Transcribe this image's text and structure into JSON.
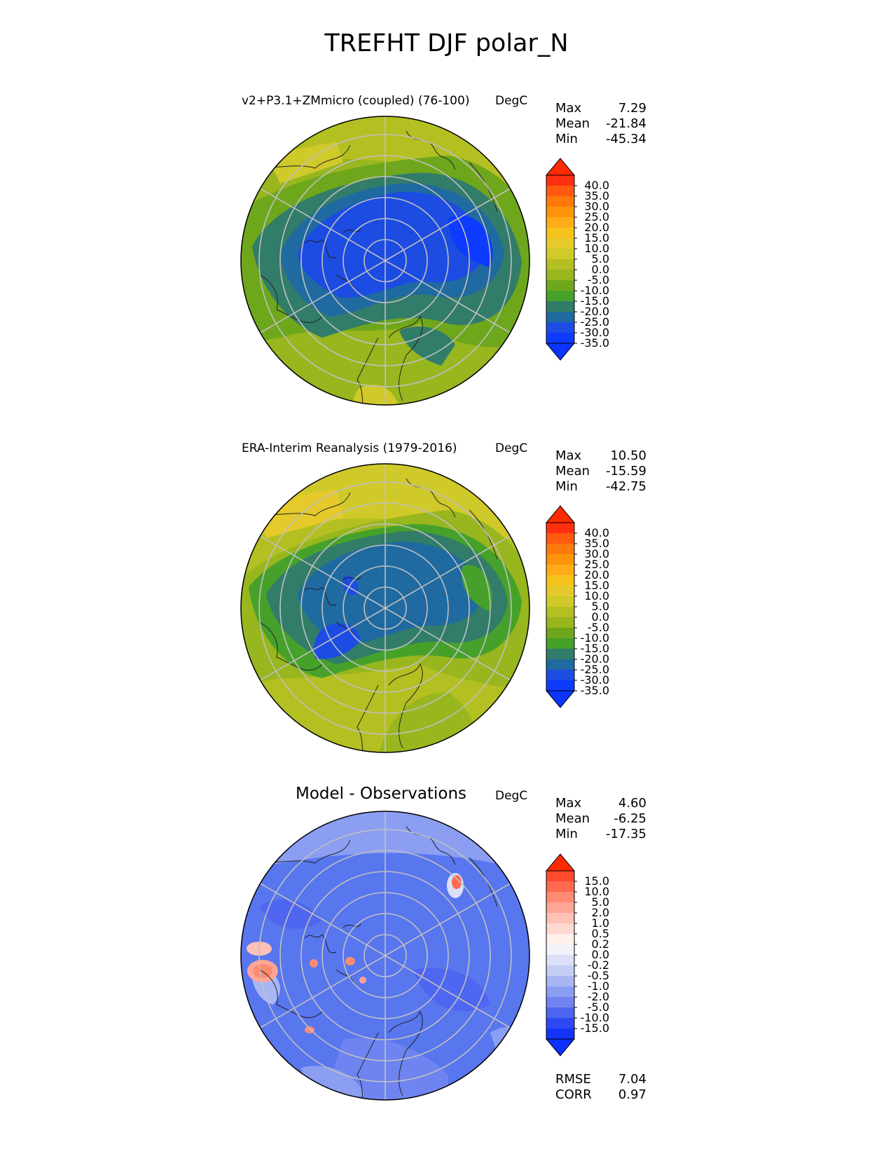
{
  "title": "TREFHT DJF polar_N",
  "panels": [
    {
      "title": "v2+P3.1+ZMmicro (coupled) (76-100)",
      "units": "DegC",
      "stats": [
        {
          "label": "Max",
          "value": "7.29"
        },
        {
          "label": "Mean",
          "value": "-21.84"
        },
        {
          "label": "Min",
          "value": "-45.34"
        }
      ],
      "colorbar": {
        "ticks": [
          "40.0",
          "35.0",
          "30.0",
          "25.0",
          "20.0",
          "15.0",
          "10.0",
          "5.0",
          "0.0",
          "-5.0",
          "-10.0",
          "-15.0",
          "-20.0",
          "-25.0",
          "-30.0",
          "-35.0"
        ],
        "colors": [
          "#ff3010",
          "#ff5a10",
          "#ff7a0a",
          "#ff950a",
          "#ffac18",
          "#f6c21c",
          "#e6c92a",
          "#d0c92a",
          "#b4bf22",
          "#98b61e",
          "#6fa71c",
          "#46a12b",
          "#327c6a",
          "#1f6aa0",
          "#1c4ce2",
          "#0d3bff"
        ],
        "over": "#ff2a00",
        "under": "#0b35ff"
      }
    },
    {
      "title": "ERA-Interim Reanalysis (1979-2016)",
      "units": "DegC",
      "stats": [
        {
          "label": "Max",
          "value": "10.50"
        },
        {
          "label": "Mean",
          "value": "-15.59"
        },
        {
          "label": "Min",
          "value": "-42.75"
        }
      ],
      "colorbar": {
        "ticks": [
          "40.0",
          "35.0",
          "30.0",
          "25.0",
          "20.0",
          "15.0",
          "10.0",
          "5.0",
          "0.0",
          "-5.0",
          "-10.0",
          "-15.0",
          "-20.0",
          "-25.0",
          "-30.0",
          "-35.0"
        ],
        "colors": [
          "#ff3010",
          "#ff5a10",
          "#ff7a0a",
          "#ff950a",
          "#ffac18",
          "#f6c21c",
          "#e6c92a",
          "#d0c92a",
          "#b4bf22",
          "#98b61e",
          "#6fa71c",
          "#46a12b",
          "#327c6a",
          "#1f6aa0",
          "#1c4ce2",
          "#0d3bff"
        ],
        "over": "#ff2a00",
        "under": "#0b35ff"
      }
    },
    {
      "title": "Model - Observations",
      "units": "DegC",
      "stats": [
        {
          "label": "Max",
          "value": "4.60"
        },
        {
          "label": "Mean",
          "value": "-6.25"
        },
        {
          "label": "Min",
          "value": "-17.35"
        }
      ],
      "colorbar": {
        "ticks": [
          "15.0",
          "10.0",
          "5.0",
          "2.0",
          "1.0",
          "0.5",
          "0.2",
          "0.0",
          "-0.2",
          "-0.5",
          "-1.0",
          "-2.0",
          "-5.0",
          "-10.0",
          "-15.0"
        ],
        "colors": [
          "#ff4a30",
          "#ff6a50",
          "#ff8a72",
          "#ffa596",
          "#ffc0b5",
          "#ffd8d0",
          "#fff0ec",
          "#f2f2fa",
          "#dbe0f8",
          "#c4cdf6",
          "#a8b6f4",
          "#8c9ef2",
          "#6f84f0",
          "#4f66f0",
          "#2f48f4",
          "#1432fa"
        ],
        "over": "#ff2a00",
        "under": "#0b30ff"
      },
      "metrics": [
        {
          "label": "RMSE",
          "value": "7.04"
        },
        {
          "label": "CORR",
          "value": "0.97"
        }
      ]
    }
  ]
}
